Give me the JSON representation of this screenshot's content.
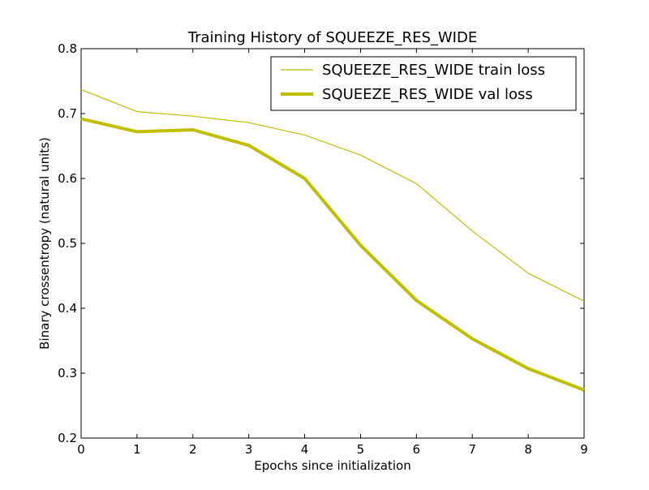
{
  "chart_data": {
    "type": "line",
    "title": "Training History of SQUEEZE_RES_WIDE",
    "xlabel": "Epochs since initialization",
    "ylabel": "Binary crossentropy (natural units)",
    "xlim": [
      0,
      9
    ],
    "ylim": [
      0.2,
      0.8
    ],
    "x": [
      0,
      1,
      2,
      3,
      4,
      5,
      6,
      7,
      8,
      9
    ],
    "xticks": [
      "0",
      "1",
      "2",
      "3",
      "4",
      "5",
      "6",
      "7",
      "8",
      "9"
    ],
    "yticks": [
      "0.2",
      "0.3",
      "0.4",
      "0.5",
      "0.6",
      "0.7",
      "0.8"
    ],
    "grid": false,
    "legend_position": "top-right",
    "series": [
      {
        "name": "SQUEEZE_RES_WIDE train loss",
        "color": "#bfbf00",
        "style": "thin",
        "values": [
          0.737,
          0.703,
          0.696,
          0.686,
          0.667,
          0.636,
          0.592,
          0.519,
          0.454,
          0.411
        ]
      },
      {
        "name": "SQUEEZE_RES_WIDE val loss",
        "color": "#bfbf00",
        "style": "thick",
        "values": [
          0.692,
          0.672,
          0.675,
          0.651,
          0.6,
          0.497,
          0.412,
          0.353,
          0.307,
          0.274
        ]
      }
    ]
  }
}
